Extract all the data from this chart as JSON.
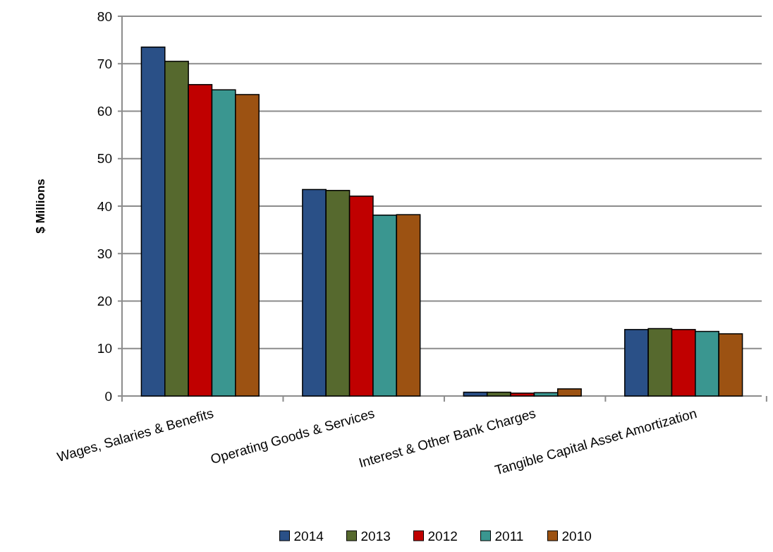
{
  "chart_data": {
    "type": "bar",
    "ylabel": "$ Millions",
    "categories": [
      "Wages, Salaries & Benefits",
      "Operating Goods & Services",
      "Interest & Other Bank Charges",
      "Tangible Capital Asset Amortization"
    ],
    "series": [
      {
        "name": "2014",
        "color": "#2a5087",
        "values": [
          73.5,
          43.5,
          0.8,
          14.0
        ]
      },
      {
        "name": "2013",
        "color": "#56692e",
        "values": [
          70.5,
          43.3,
          0.8,
          14.2
        ]
      },
      {
        "name": "2012",
        "color": "#c00000",
        "values": [
          65.6,
          42.1,
          0.6,
          14.0
        ]
      },
      {
        "name": "2011",
        "color": "#3a9690",
        "values": [
          64.5,
          38.1,
          0.7,
          13.6
        ]
      },
      {
        "name": "2010",
        "color": "#9c5212",
        "values": [
          63.5,
          38.2,
          1.5,
          13.1
        ]
      }
    ],
    "ylim": [
      0,
      80
    ],
    "yticks": [
      0,
      10,
      20,
      30,
      40,
      50,
      60,
      70,
      80
    ],
    "grid": "y",
    "legend": "bottom"
  }
}
